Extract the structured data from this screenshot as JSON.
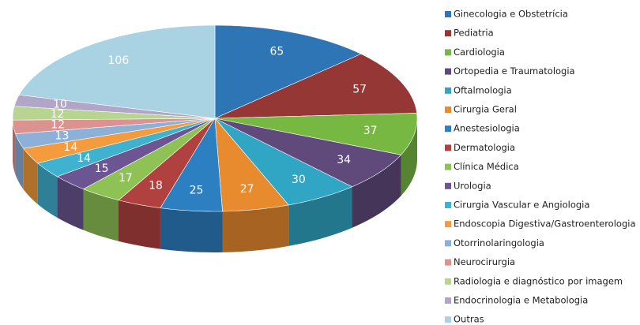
{
  "chart_data": {
    "type": "pie",
    "categories": [
      "Ginecologia e Obstetrícia",
      "Pediatria",
      "Cardiologia",
      "Ortopedia e Traumatologia",
      "Oftalmologia",
      "Cirurgia Geral",
      "Anestesiologia",
      "Dermatologia",
      "Clínica Médica",
      "Urologia",
      "Cirurgia Vascular e Angiologia",
      "Endoscopia Digestiva/Gastroenterologia",
      "Otorrinolaringologia",
      "Neurocirurgia",
      "Radiologia e diagnóstico por imagem",
      "Endocrinologia e Metabologia",
      "Outras"
    ],
    "values": [
      65,
      57,
      37,
      34,
      30,
      27,
      25,
      18,
      17,
      15,
      14,
      14,
      13,
      12,
      12,
      10,
      106
    ],
    "colors": [
      "#2e75b6",
      "#953735",
      "#77b843",
      "#604a7b",
      "#31a5c4",
      "#e88a2e",
      "#2c7fc1",
      "#b0413e",
      "#8fc255",
      "#6b5592",
      "#3fb2cf",
      "#f39b3d",
      "#8db0d9",
      "#dc9290",
      "#b7d491",
      "#b1a5c8",
      "#a9d2e3"
    ],
    "legend": "right"
  }
}
